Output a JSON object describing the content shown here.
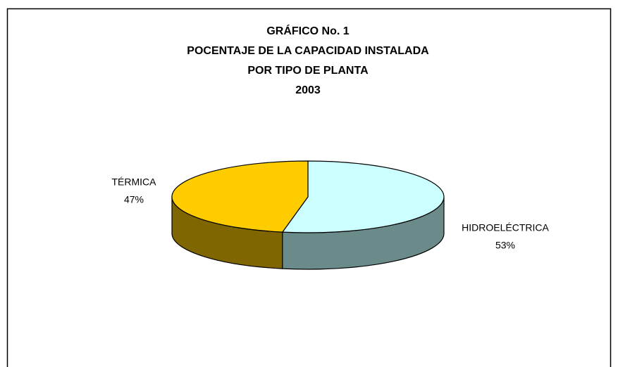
{
  "chart_data": {
    "type": "pie",
    "title": [
      "GRÁFICO No. 1",
      "POCENTAJE DE LA CAPACIDAD INSTALADA",
      "POR TIPO DE PLANTA",
      "2003"
    ],
    "categories": [
      "HIDROELÉCTRICA",
      "TÉRMICA"
    ],
    "values": [
      53,
      47
    ],
    "value_labels": [
      "53%",
      "47%"
    ],
    "colors": [
      "#ccffff",
      "#ffcc00"
    ],
    "side_colors": [
      "#6b8b8b",
      "#806600"
    ]
  }
}
